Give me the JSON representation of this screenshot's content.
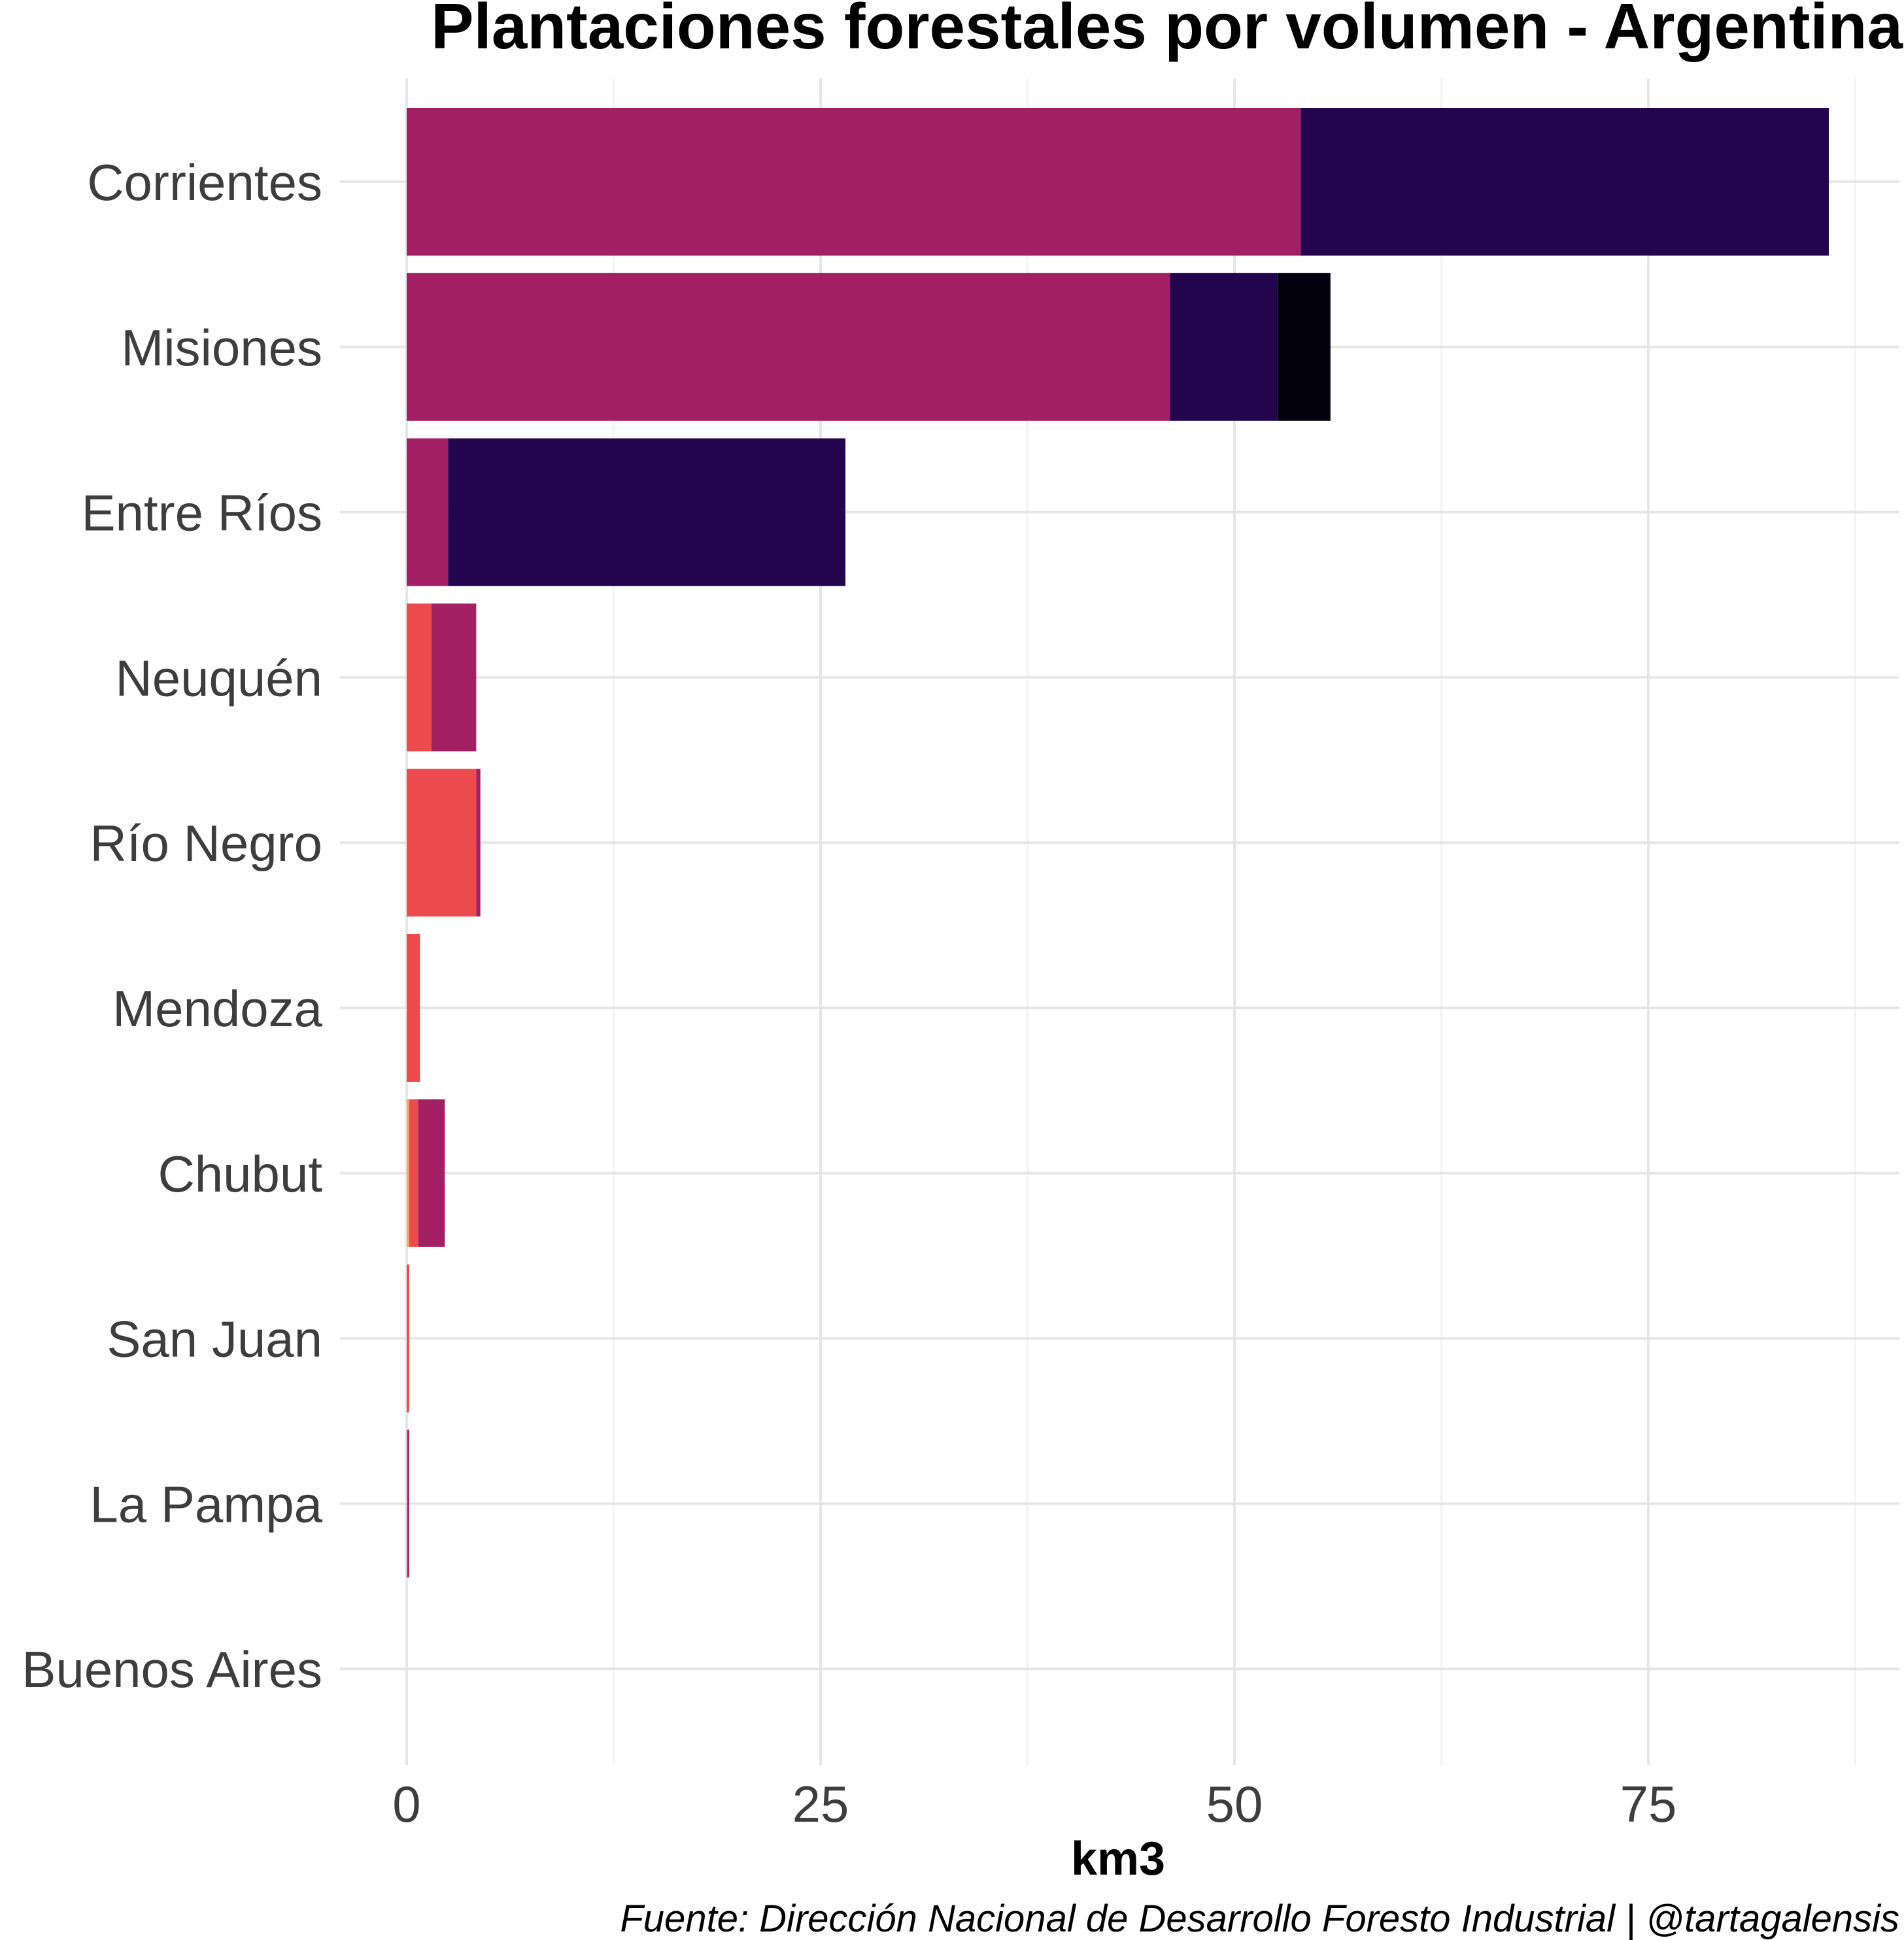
{
  "chart_data": {
    "type": "bar",
    "orientation": "horizontal",
    "stacked": true,
    "title": "Plantaciones forestales por volumen - Argentina",
    "xlabel": "km3",
    "ylabel": "",
    "caption": "Fuente: Dirección Nacional de Desarrollo Foresto Industrial | @tartagalensis",
    "xlim": [
      0,
      90
    ],
    "x_ticks": [
      0,
      25,
      50,
      75
    ],
    "grid": true,
    "legend": "none",
    "categories": [
      "Corrientes",
      "Misiones",
      "Entre Ríos",
      "Neuquén",
      "Río Negro",
      "Mendoza",
      "Chubut",
      "San Juan",
      "La Pampa",
      "Buenos Aires"
    ],
    "series": [
      {
        "color": "#fba16d",
        "values": [
          0,
          0,
          0,
          0,
          0,
          0,
          0.15,
          0,
          0,
          0
        ]
      },
      {
        "color": "#ec4a4d",
        "values": [
          0,
          0,
          0,
          1.5,
          4.2,
          0.8,
          0.55,
          0.15,
          0.05,
          0
        ]
      },
      {
        "color": "#a31f63",
        "values": [
          54,
          46.1,
          2.5,
          2.7,
          0.25,
          0,
          1.6,
          0,
          0.1,
          0
        ]
      },
      {
        "color": "#23054e",
        "values": [
          31.9,
          6.5,
          24,
          0,
          0,
          0,
          0,
          0,
          0,
          0
        ]
      },
      {
        "color": "#02010d",
        "values": [
          0,
          3.2,
          0,
          0,
          0,
          0,
          0,
          0,
          0,
          0
        ]
      }
    ]
  }
}
